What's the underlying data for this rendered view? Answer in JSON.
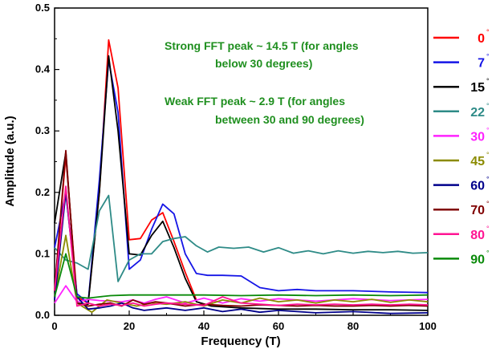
{
  "chart_data": {
    "type": "line",
    "xlabel": "Frequency (T)",
    "ylabel": "Amplitude (a.u.)",
    "xlim": [
      0,
      100
    ],
    "ylim": [
      0.0,
      0.5
    ],
    "xticks": [
      "0",
      "20",
      "40",
      "60",
      "80",
      "100"
    ],
    "yticks": [
      "0.0",
      "0.1",
      "0.2",
      "0.3",
      "0.4",
      "0.5"
    ],
    "grid": false,
    "legend_position": "right",
    "degree_symbol": "°",
    "annotations": [
      {
        "lines": [
          "Strong FFT peak ~ 14.5 T (for angles",
          "below 30 degrees)"
        ],
        "color": "#1f8f1f"
      },
      {
        "lines": [
          "Weak FFT peak ~  2.9 T (for angles",
          "between 30 and 90 degrees)"
        ],
        "color": "#1f8f1f"
      }
    ],
    "series": [
      {
        "name": "0",
        "color": "#ff0000",
        "x": [
          0,
          3,
          6,
          9,
          12,
          14.5,
          17,
          20,
          23,
          26,
          29,
          32,
          35,
          38
        ],
        "y": [
          0.04,
          0.26,
          0.03,
          0.02,
          0.2,
          0.448,
          0.37,
          0.123,
          0.125,
          0.155,
          0.167,
          0.12,
          0.07,
          0.025
        ]
      },
      {
        "name": "7",
        "color": "#1515e6",
        "x": [
          0,
          3,
          6,
          9,
          12,
          14.5,
          17,
          20,
          23,
          26,
          29,
          32,
          35,
          38,
          41,
          45,
          50,
          55,
          60,
          65,
          70,
          80,
          90,
          100
        ],
        "y": [
          0.11,
          0.2,
          0.035,
          0.02,
          0.22,
          0.415,
          0.33,
          0.075,
          0.09,
          0.14,
          0.181,
          0.165,
          0.1,
          0.068,
          0.065,
          0.065,
          0.064,
          0.045,
          0.04,
          0.042,
          0.04,
          0.04,
          0.038,
          0.037
        ]
      },
      {
        "name": "15",
        "color": "#000000",
        "x": [
          0,
          3,
          6,
          9,
          12,
          14.5,
          17,
          20,
          23,
          26,
          29,
          32,
          35,
          38,
          42,
          50,
          60,
          70,
          80,
          90,
          100
        ],
        "y": [
          0.15,
          0.265,
          0.02,
          0.018,
          0.2,
          0.422,
          0.3,
          0.1,
          0.098,
          0.13,
          0.153,
          0.11,
          0.06,
          0.022,
          0.015,
          0.012,
          0.01,
          0.01,
          0.009,
          0.009,
          0.008
        ]
      },
      {
        "name": "22",
        "color": "#2e8b87",
        "x": [
          0,
          3,
          6,
          9,
          12,
          14.5,
          17,
          20,
          23,
          26,
          29,
          32,
          35,
          38,
          41,
          44,
          48,
          52,
          56,
          60,
          64,
          68,
          72,
          76,
          80,
          84,
          88,
          92,
          96,
          100
        ],
        "y": [
          0.11,
          0.09,
          0.085,
          0.075,
          0.17,
          0.195,
          0.055,
          0.09,
          0.1,
          0.1,
          0.12,
          0.125,
          0.128,
          0.113,
          0.103,
          0.111,
          0.109,
          0.111,
          0.103,
          0.11,
          0.101,
          0.105,
          0.1,
          0.105,
          0.101,
          0.104,
          0.102,
          0.104,
          0.101,
          0.102
        ]
      },
      {
        "name": "30",
        "color": "#ff22ff",
        "x": [
          0,
          3,
          6,
          9,
          12,
          15,
          18,
          21,
          24,
          27,
          30,
          35,
          40,
          45,
          50,
          55,
          60,
          70,
          80,
          90,
          100
        ],
        "y": [
          0.02,
          0.048,
          0.022,
          0.026,
          0.024,
          0.023,
          0.022,
          0.025,
          0.02,
          0.026,
          0.03,
          0.02,
          0.028,
          0.02,
          0.027,
          0.023,
          0.027,
          0.023,
          0.027,
          0.024,
          0.026
        ]
      },
      {
        "name": "45",
        "color": "#8b8b00",
        "x": [
          0,
          3,
          6,
          10,
          14,
          18,
          22,
          26,
          30,
          35,
          40,
          45,
          50,
          55,
          60,
          65,
          70,
          75,
          80,
          85,
          90,
          95,
          100
        ],
        "y": [
          0.03,
          0.13,
          0.02,
          0.005,
          0.025,
          0.02,
          0.015,
          0.02,
          0.018,
          0.022,
          0.015,
          0.025,
          0.02,
          0.028,
          0.022,
          0.025,
          0.02,
          0.025,
          0.022,
          0.026,
          0.021,
          0.025,
          0.022
        ]
      },
      {
        "name": "60",
        "color": "#00008b",
        "x": [
          0,
          3,
          6,
          9,
          12,
          15,
          18,
          21,
          24,
          27,
          30,
          35,
          40,
          45,
          50,
          55,
          60,
          70,
          80,
          90,
          100
        ],
        "y": [
          0.025,
          0.2,
          0.03,
          0.01,
          0.012,
          0.015,
          0.02,
          0.012,
          0.008,
          0.01,
          0.012,
          0.008,
          0.012,
          0.006,
          0.01,
          0.005,
          0.008,
          0.004,
          0.006,
          0.003,
          0.004
        ]
      },
      {
        "name": "70",
        "color": "#800000",
        "x": [
          0,
          3,
          6,
          9,
          12,
          15,
          18,
          21,
          24,
          27,
          30,
          35,
          40,
          45,
          50,
          55,
          60,
          65,
          70,
          75,
          80,
          85,
          90,
          95,
          100
        ],
        "y": [
          0.04,
          0.268,
          0.02,
          0.015,
          0.018,
          0.02,
          0.015,
          0.025,
          0.018,
          0.022,
          0.02,
          0.015,
          0.018,
          0.016,
          0.015,
          0.017,
          0.016,
          0.015,
          0.016,
          0.015,
          0.015,
          0.016,
          0.015,
          0.016,
          0.015
        ]
      },
      {
        "name": "80",
        "color": "#ff1493",
        "x": [
          0,
          3,
          6,
          9,
          12,
          15,
          18,
          21,
          24,
          27,
          30,
          35,
          40,
          45,
          50,
          55,
          60,
          65,
          70,
          75,
          80,
          85,
          90,
          95,
          100
        ],
        "y": [
          0.04,
          0.21,
          0.015,
          0.02,
          0.015,
          0.018,
          0.016,
          0.02,
          0.015,
          0.018,
          0.02,
          0.018,
          0.016,
          0.03,
          0.02,
          0.018,
          0.016,
          0.018,
          0.017,
          0.018,
          0.017,
          0.018,
          0.017,
          0.018,
          0.017
        ]
      },
      {
        "name": "90",
        "color": "#0a8a0a",
        "x": [
          0,
          3,
          6,
          9,
          12,
          15,
          20,
          30,
          40,
          50,
          60,
          70,
          80,
          90,
          100
        ],
        "y": [
          0.03,
          0.1,
          0.03,
          0.028,
          0.03,
          0.032,
          0.033,
          0.033,
          0.033,
          0.032,
          0.033,
          0.032,
          0.033,
          0.032,
          0.033
        ]
      }
    ]
  }
}
